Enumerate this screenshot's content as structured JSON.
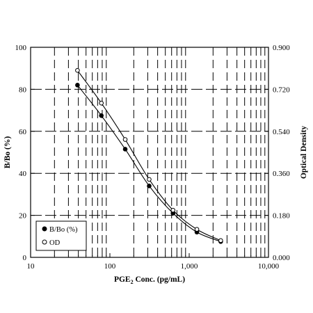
{
  "chart_data": {
    "type": "line",
    "xlabel_main": "PGE",
    "xlabel_sub": "2",
    "xlabel_tail": " Conc. (pg/mL)",
    "ylabel_left": "B/Bo (%)",
    "ylabel_right": "Optical Density",
    "x_scale": "log",
    "xlim": [
      10,
      10000
    ],
    "ylim_left": [
      0,
      100
    ],
    "ylim_right": [
      0,
      0.9
    ],
    "x_ticks": [
      10,
      100,
      1000,
      10000
    ],
    "x_tick_labels": [
      "10",
      "100",
      "1,000",
      "10,000"
    ],
    "y_left_ticks": [
      0,
      20,
      40,
      60,
      80,
      100
    ],
    "y_left_tick_labels": [
      "0",
      "20",
      "40",
      "60",
      "80",
      "100"
    ],
    "y_right_ticks": [
      0,
      0.18,
      0.36,
      0.54,
      0.72,
      0.9
    ],
    "y_right_tick_labels": [
      "0.000",
      "0.180",
      "0.360",
      "0.540",
      "0.720",
      "0.900"
    ],
    "grid": "dashed",
    "legend_position": "bottom-left",
    "series": [
      {
        "name": "B/Bo (%)",
        "axis": "left",
        "marker": "filled-circle",
        "x": [
          39,
          78,
          156,
          313,
          625,
          1250,
          2500
        ],
        "y": [
          82,
          67.5,
          51.5,
          34,
          21,
          12,
          7.5
        ]
      },
      {
        "name": "OD",
        "axis": "right",
        "marker": "open-circle",
        "x": [
          39,
          78,
          156,
          313,
          625,
          1250,
          2500
        ],
        "y": [
          0.801,
          0.661,
          0.505,
          0.334,
          0.202,
          0.12,
          0.072
        ]
      }
    ]
  }
}
